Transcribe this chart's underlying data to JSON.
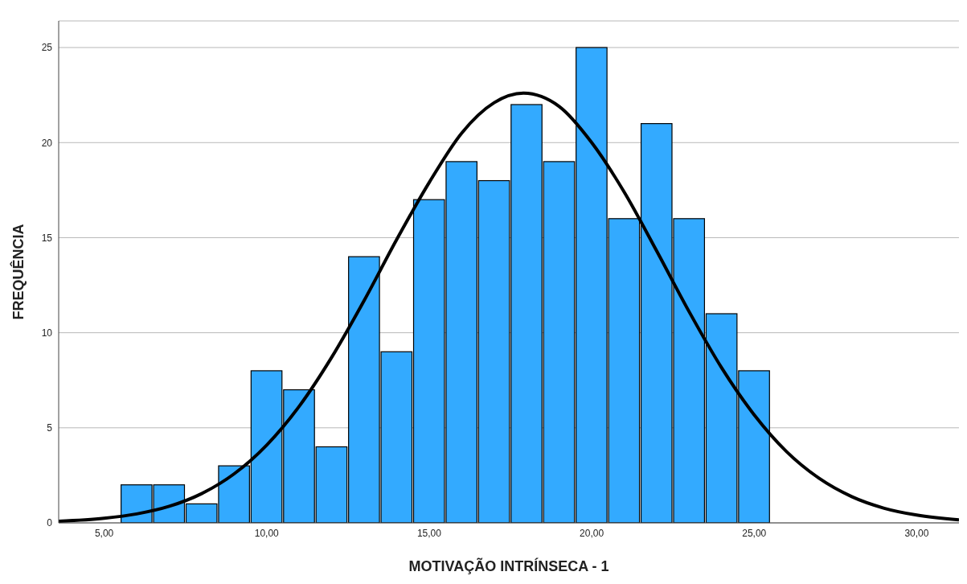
{
  "chart_data": {
    "type": "histogram",
    "xlabel": "MOTIVAÇÃO INTRÍNSECA - 1",
    "ylabel": "FREQUÊNCIA",
    "bins": [
      5.5,
      6.5,
      7.5,
      8.5,
      9.5,
      10.5,
      11.5,
      12.5,
      13.5,
      14.5,
      15.5,
      16.5,
      17.5,
      18.5,
      19.5,
      20.5,
      21.5,
      22.5,
      23.5,
      24.5,
      25.5
    ],
    "values": [
      2,
      2,
      1,
      3,
      8,
      7,
      4,
      14,
      9,
      17,
      19,
      18,
      22,
      19,
      25,
      16,
      21,
      16,
      11,
      8
    ],
    "color": "#33aaff",
    "series": [
      {
        "type": "line",
        "color": "#000000",
        "x": [
          3.6,
          5,
          6,
          7,
          8,
          9,
          10,
          11,
          12,
          13,
          14,
          15,
          16,
          17,
          17.9,
          19,
          20,
          21,
          22,
          23,
          24,
          25,
          26,
          27,
          28,
          29,
          30,
          31.3
        ],
        "values": [
          0.08,
          0.24,
          0.47,
          0.87,
          1.54,
          2.58,
          4.09,
          6.13,
          8.71,
          11.7,
          14.9,
          17.9,
          20.5,
          22.1,
          22.6,
          21.9,
          20.0,
          17.4,
          14.3,
          11.1,
          8.15,
          5.68,
          3.74,
          2.34,
          1.38,
          0.77,
          0.41,
          0.16
        ]
      }
    ],
    "marker": "none",
    "xlim": [
      3.6,
      31.3
    ],
    "xticks": [
      {
        "value": 5,
        "label": "5,00"
      },
      {
        "value": 10,
        "label": "10,00"
      },
      {
        "value": 15,
        "label": "15,00"
      },
      {
        "value": 20,
        "label": "20,00"
      },
      {
        "value": 25,
        "label": "25,00"
      },
      {
        "value": 30,
        "label": "30,00"
      }
    ],
    "ylim": [
      0,
      26.4
    ],
    "yticks": [
      0,
      5,
      10,
      15,
      20,
      25
    ],
    "grid": "y"
  }
}
